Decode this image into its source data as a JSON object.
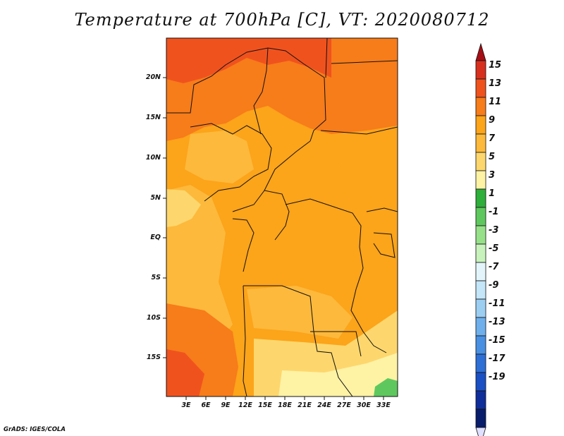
{
  "title": "Temperature at 700hPa [C], VT: 2020080712",
  "credit": "GrADS: IGES/COLA",
  "map": {
    "y_labels": [
      "20N",
      "15N",
      "10N",
      "5N",
      "EQ",
      "5S",
      "10S",
      "15S"
    ],
    "x_labels": [
      "3E",
      "6E",
      "9E",
      "12E",
      "15E",
      "18E",
      "21E",
      "24E",
      "27E",
      "30E",
      "33E"
    ]
  },
  "colorbar": {
    "labels": [
      "15",
      "13",
      "11",
      "9",
      "7",
      "5",
      "3",
      "1",
      "-1",
      "-3",
      "-5",
      "-7",
      "-9",
      "-11",
      "-13",
      "-15",
      "-17",
      "-19"
    ],
    "colors": [
      "#a50f15",
      "#d7301f",
      "#f0521e",
      "#f77c1a",
      "#fca41a",
      "#fdb93c",
      "#fdd76d",
      "#fef2a5",
      "#2eae3a",
      "#5ec85e",
      "#97e08a",
      "#c8f2bc",
      "#e3f5fb",
      "#c4e6f8",
      "#9ccef2",
      "#6fb0ec",
      "#4a90e2",
      "#2e6fd6",
      "#1a50c4",
      "#0f2e9a",
      "#081d6b",
      "#e0e0ff"
    ]
  }
}
